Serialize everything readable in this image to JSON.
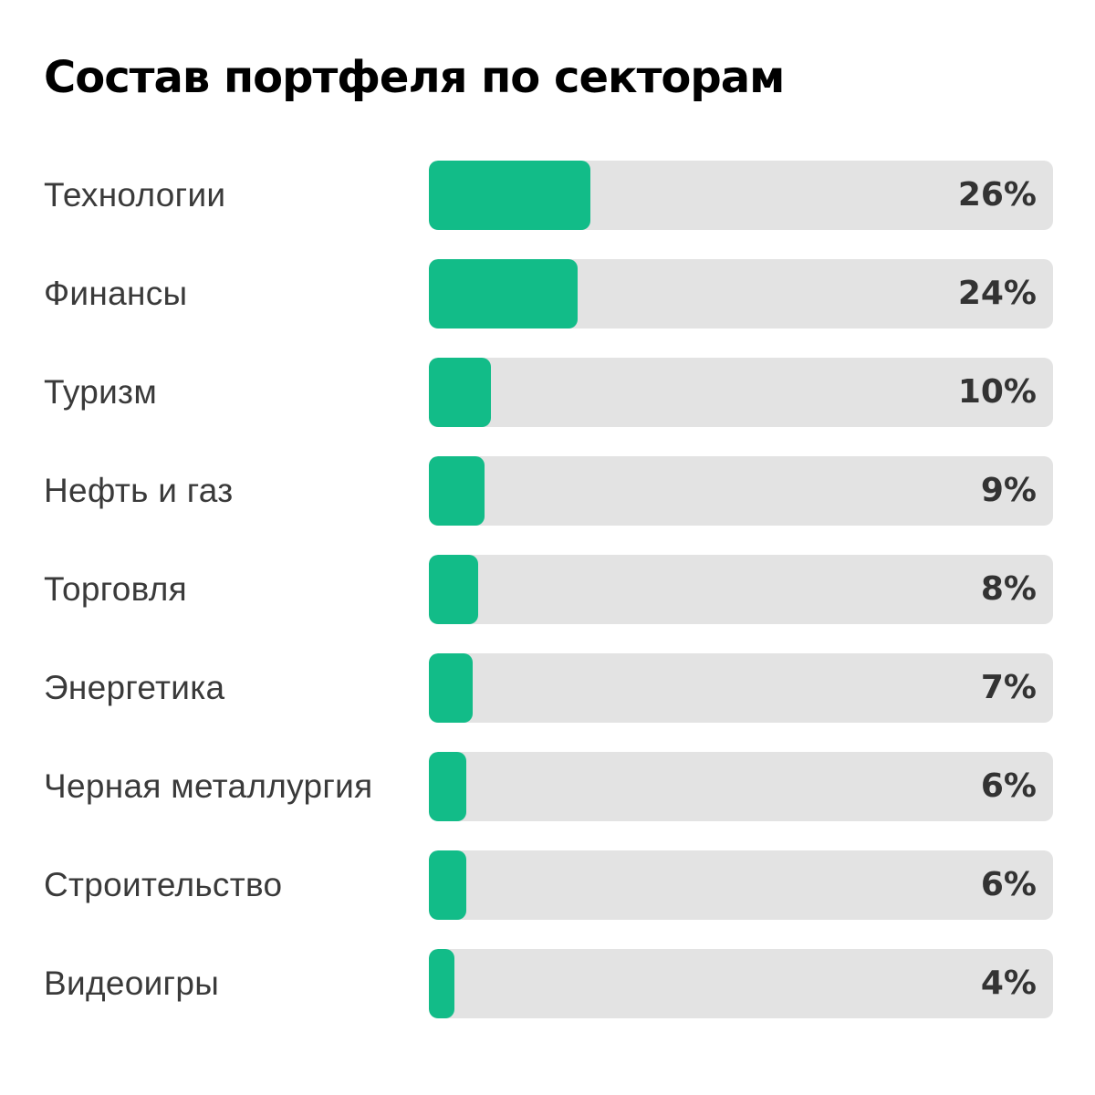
{
  "colors": {
    "bar_fill": "#12bc88",
    "track": "#e3e3e3"
  },
  "chart_data": {
    "type": "bar",
    "orientation": "horizontal",
    "title": "Состав портфеля по секторам",
    "categories": [
      "Технологии",
      "Финансы",
      "Туризм",
      "Нефть и газ",
      "Торговля",
      "Энергетика",
      "Черная металлургия",
      "Строительство",
      "Видеоигры"
    ],
    "values": [
      26,
      24,
      10,
      9,
      8,
      7,
      6,
      6,
      4
    ],
    "value_labels": [
      "26%",
      "24%",
      "10%",
      "9%",
      "8%",
      "7%",
      "6%",
      "6%",
      "4%"
    ],
    "unit": "%",
    "xlim": [
      0,
      100
    ],
    "grid": false,
    "legend": "none"
  }
}
